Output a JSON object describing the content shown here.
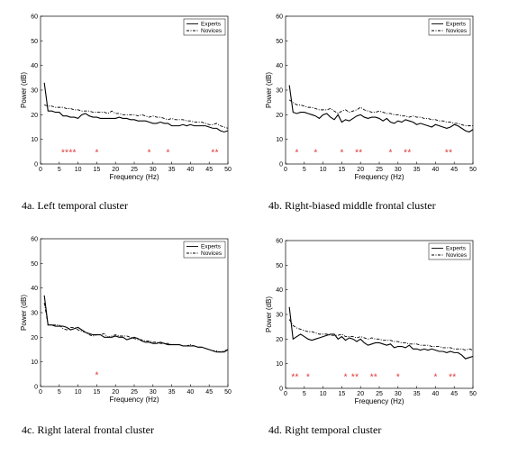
{
  "chart_data": [
    {
      "type": "line",
      "caption": "4a. Left temporal cluster",
      "xlabel": "Frequency (Hz)",
      "ylabel": "Power (dB)",
      "xlim": [
        0,
        50
      ],
      "ylim": [
        0,
        60
      ],
      "xticks": [
        0,
        5,
        10,
        15,
        20,
        25,
        30,
        35,
        40,
        45,
        50
      ],
      "yticks": [
        0,
        10,
        20,
        30,
        40,
        50,
        60
      ],
      "legend": "top-right",
      "series": [
        {
          "name": "Experts",
          "style": "solid",
          "x": [
            1,
            2,
            3,
            4,
            5,
            6,
            7,
            8,
            9,
            10,
            11,
            12,
            13,
            14,
            15,
            16,
            17,
            18,
            19,
            20,
            21,
            22,
            23,
            24,
            25,
            26,
            27,
            28,
            29,
            30,
            31,
            32,
            33,
            34,
            35,
            36,
            37,
            38,
            39,
            40,
            41,
            42,
            43,
            44,
            45,
            46,
            47,
            48,
            49,
            50
          ],
          "y": [
            33,
            21.5,
            21.5,
            21,
            21,
            19.5,
            19.5,
            19,
            19,
            18.5,
            20,
            20.5,
            19.5,
            19,
            19,
            18.5,
            18.5,
            18.5,
            18.5,
            18.5,
            19,
            18.5,
            18.5,
            18,
            18,
            17.5,
            17.5,
            17.5,
            17,
            16.5,
            16.5,
            17,
            16.5,
            16.5,
            15.5,
            15.5,
            15.5,
            16,
            15.5,
            16,
            15.5,
            15.5,
            15.5,
            15.5,
            15,
            14.5,
            14.5,
            13.5,
            13,
            13.5
          ]
        },
        {
          "name": "Novices",
          "style": "dashed",
          "x": [
            1,
            2,
            3,
            4,
            5,
            6,
            7,
            8,
            9,
            10,
            11,
            12,
            13,
            14,
            15,
            16,
            17,
            18,
            19,
            20,
            21,
            22,
            23,
            24,
            25,
            26,
            27,
            28,
            29,
            30,
            31,
            32,
            33,
            34,
            35,
            36,
            37,
            38,
            39,
            40,
            41,
            42,
            43,
            44,
            45,
            46,
            47,
            48,
            49,
            50
          ],
          "y": [
            24,
            23.5,
            23.5,
            23,
            23,
            23,
            22.5,
            22.5,
            22,
            22,
            21.5,
            21.5,
            21.5,
            21,
            21,
            21,
            21,
            20.5,
            21.5,
            20.5,
            20.5,
            20,
            20,
            20,
            20,
            19.5,
            20,
            19.5,
            19,
            19.5,
            19,
            19,
            18.5,
            18,
            18.5,
            18,
            18,
            18,
            17.5,
            17.5,
            17,
            17,
            17,
            16.5,
            16,
            16,
            16.5,
            15.5,
            15,
            14.5
          ]
        }
      ],
      "significance_marks": [
        {
          "x": 6,
          "y": 5
        },
        {
          "x": 7,
          "y": 5
        },
        {
          "x": 8,
          "y": 5
        },
        {
          "x": 9,
          "y": 5
        },
        {
          "x": 15,
          "y": 5
        },
        {
          "x": 29,
          "y": 5
        },
        {
          "x": 34,
          "y": 5
        },
        {
          "x": 46,
          "y": 5
        },
        {
          "x": 47,
          "y": 5
        }
      ]
    },
    {
      "type": "line",
      "caption": "4b. Right-biased middle frontal cluster",
      "xlabel": "Frequency (Hz)",
      "ylabel": "Power (dB)",
      "xlim": [
        0,
        50
      ],
      "ylim": [
        0,
        60
      ],
      "xticks": [
        0,
        5,
        10,
        15,
        20,
        25,
        30,
        35,
        40,
        45,
        50
      ],
      "yticks": [
        0,
        10,
        20,
        30,
        40,
        50,
        60
      ],
      "legend": "top-right",
      "series": [
        {
          "name": "Experts",
          "style": "solid",
          "x": [
            1,
            2,
            3,
            4,
            5,
            6,
            7,
            8,
            9,
            10,
            11,
            12,
            13,
            14,
            15,
            16,
            17,
            18,
            19,
            20,
            21,
            22,
            23,
            24,
            25,
            26,
            27,
            28,
            29,
            30,
            31,
            32,
            33,
            34,
            35,
            36,
            37,
            38,
            39,
            40,
            41,
            42,
            43,
            44,
            45,
            46,
            47,
            48,
            49,
            50
          ],
          "y": [
            32,
            21,
            20.5,
            21,
            21,
            20.5,
            20,
            19.5,
            18.5,
            20,
            20.5,
            19,
            18,
            20,
            17,
            18,
            17.5,
            18.5,
            19.5,
            20,
            19,
            18.5,
            19,
            19,
            18.5,
            17.5,
            18.5,
            17,
            16.5,
            17.5,
            17,
            18,
            17.5,
            17,
            16,
            16.5,
            16,
            15.5,
            15,
            16,
            15.5,
            15,
            14.5,
            15,
            16,
            15.5,
            14.5,
            13.5,
            13,
            14
          ]
        },
        {
          "name": "Novices",
          "style": "dashed",
          "x": [
            1,
            2,
            3,
            4,
            5,
            6,
            7,
            8,
            9,
            10,
            11,
            12,
            13,
            14,
            15,
            16,
            17,
            18,
            19,
            20,
            21,
            22,
            23,
            24,
            25,
            26,
            27,
            28,
            29,
            30,
            31,
            32,
            33,
            34,
            35,
            36,
            37,
            38,
            39,
            40,
            41,
            42,
            43,
            44,
            45,
            46,
            47,
            48,
            49,
            50
          ],
          "y": [
            26,
            25,
            24,
            24,
            23.5,
            23,
            23,
            22.5,
            22,
            22,
            22,
            22.5,
            21.5,
            20.5,
            21.5,
            22,
            21,
            21.5,
            22,
            23,
            22,
            21.5,
            21,
            21,
            21.5,
            21,
            20.5,
            20.5,
            20,
            20,
            19.5,
            19.5,
            19,
            19.5,
            19,
            19,
            18.5,
            18.5,
            18,
            18,
            17.5,
            17.5,
            17,
            17,
            16.5,
            16.5,
            16,
            15.5,
            15.5,
            15.5
          ]
        }
      ],
      "significance_marks": [
        {
          "x": 3,
          "y": 5
        },
        {
          "x": 8,
          "y": 5
        },
        {
          "x": 15,
          "y": 5
        },
        {
          "x": 19,
          "y": 5
        },
        {
          "x": 20,
          "y": 5
        },
        {
          "x": 28,
          "y": 5
        },
        {
          "x": 32,
          "y": 5
        },
        {
          "x": 33,
          "y": 5
        },
        {
          "x": 43,
          "y": 5
        },
        {
          "x": 44,
          "y": 5
        }
      ]
    },
    {
      "type": "line",
      "caption": "4c. Right lateral frontal cluster",
      "xlabel": "Frequency (Hz)",
      "ylabel": "Power (dB)",
      "xlim": [
        0,
        50
      ],
      "ylim": [
        0,
        60
      ],
      "xticks": [
        0,
        5,
        10,
        15,
        20,
        25,
        30,
        35,
        40,
        45,
        50
      ],
      "yticks": [
        0,
        10,
        20,
        30,
        40,
        50,
        60
      ],
      "legend": "top-right",
      "series": [
        {
          "name": "Experts",
          "style": "solid",
          "x": [
            1,
            2,
            3,
            4,
            5,
            6,
            7,
            8,
            9,
            10,
            11,
            12,
            13,
            14,
            15,
            16,
            17,
            18,
            19,
            20,
            21,
            22,
            23,
            24,
            25,
            26,
            27,
            28,
            29,
            30,
            31,
            32,
            33,
            34,
            35,
            36,
            37,
            38,
            39,
            40,
            41,
            42,
            43,
            44,
            45,
            46,
            47,
            48,
            49,
            50
          ],
          "y": [
            37,
            25,
            25,
            24.5,
            24.5,
            24.5,
            24,
            23,
            23.5,
            24,
            23,
            22,
            21.5,
            21,
            21,
            21,
            20,
            20,
            20,
            20.5,
            20,
            20,
            19,
            19.5,
            20,
            19.5,
            18.5,
            18,
            18,
            17.5,
            17.5,
            18,
            17.5,
            17,
            17,
            17,
            17,
            16.5,
            16.5,
            16.5,
            16.5,
            16,
            16,
            15.5,
            15,
            14.5,
            14,
            14,
            14,
            15
          ]
        },
        {
          "name": "Novices",
          "style": "dashed",
          "x": [
            1,
            2,
            3,
            4,
            5,
            6,
            7,
            8,
            9,
            10,
            11,
            12,
            13,
            14,
            15,
            16,
            17,
            18,
            19,
            20,
            21,
            22,
            23,
            24,
            25,
            26,
            27,
            28,
            29,
            30,
            31,
            32,
            33,
            34,
            35,
            36,
            37,
            38,
            39,
            40,
            41,
            42,
            43,
            44,
            45,
            46,
            47,
            48,
            49,
            50
          ],
          "y": [
            34,
            25,
            25,
            25,
            25,
            23.5,
            23,
            24,
            24,
            23,
            22.5,
            22,
            21,
            20.5,
            21,
            21,
            21.5,
            20,
            20.5,
            21,
            20.5,
            20.5,
            20.5,
            20,
            19.5,
            19,
            19,
            18.5,
            18.5,
            18,
            18,
            17.5,
            17.5,
            17.5,
            17,
            17,
            17,
            16.5,
            16.5,
            17,
            16.5,
            16,
            16,
            15.5,
            15,
            14.5,
            14.5,
            14,
            14.5,
            15
          ]
        }
      ],
      "significance_marks": [
        {
          "x": 15,
          "y": 5
        }
      ]
    },
    {
      "type": "line",
      "caption": "4d. Right temporal cluster",
      "xlabel": "Frequency (Hz)",
      "ylabel": "Power (dB)",
      "xlim": [
        0,
        50
      ],
      "ylim": [
        0,
        60
      ],
      "xticks": [
        0,
        5,
        10,
        15,
        20,
        25,
        30,
        35,
        40,
        45,
        50
      ],
      "yticks": [
        0,
        10,
        20,
        30,
        40,
        50,
        60
      ],
      "legend": "top-right",
      "series": [
        {
          "name": "Experts",
          "style": "solid",
          "x": [
            1,
            2,
            3,
            4,
            5,
            6,
            7,
            8,
            9,
            10,
            11,
            12,
            13,
            14,
            15,
            16,
            17,
            18,
            19,
            20,
            21,
            22,
            23,
            24,
            25,
            26,
            27,
            28,
            29,
            30,
            31,
            32,
            33,
            34,
            35,
            36,
            37,
            38,
            39,
            40,
            41,
            42,
            43,
            44,
            45,
            46,
            47,
            48,
            49,
            50
          ],
          "y": [
            33,
            20,
            21,
            22,
            21,
            20,
            19.5,
            20,
            20.5,
            21,
            21.5,
            22,
            22,
            20,
            21,
            19.5,
            20.5,
            20,
            19,
            20,
            18.5,
            17.5,
            18,
            18.5,
            18.5,
            18,
            17.5,
            18,
            16.5,
            17,
            17,
            16.5,
            17.5,
            16,
            16,
            15.5,
            16,
            15.5,
            16,
            15.5,
            15,
            15,
            14.5,
            15,
            14.5,
            14.5,
            13.5,
            12,
            12.5,
            13
          ]
        },
        {
          "name": "Novices",
          "style": "dashed",
          "x": [
            1,
            2,
            3,
            4,
            5,
            6,
            7,
            8,
            9,
            10,
            11,
            12,
            13,
            14,
            15,
            16,
            17,
            18,
            19,
            20,
            21,
            22,
            23,
            24,
            25,
            26,
            27,
            28,
            29,
            30,
            31,
            32,
            33,
            34,
            35,
            36,
            37,
            38,
            39,
            40,
            41,
            42,
            43,
            44,
            45,
            46,
            47,
            48,
            49,
            50
          ],
          "y": [
            28,
            25.5,
            24.5,
            24,
            23.5,
            23,
            23,
            22.5,
            22,
            22,
            22,
            21.5,
            21.5,
            21.5,
            22,
            21,
            21,
            21,
            20.5,
            21,
            20.5,
            20,
            20.5,
            20,
            20,
            19.5,
            19.5,
            19.5,
            19,
            19,
            18.5,
            18.5,
            18,
            18,
            18,
            17.5,
            17.5,
            17.5,
            17,
            17,
            17,
            16.5,
            16.5,
            16.5,
            16,
            16,
            16,
            15.5,
            16,
            15.5
          ]
        }
      ],
      "significance_marks": [
        {
          "x": 2,
          "y": 5
        },
        {
          "x": 3,
          "y": 5
        },
        {
          "x": 6,
          "y": 5
        },
        {
          "x": 16,
          "y": 5
        },
        {
          "x": 18,
          "y": 5
        },
        {
          "x": 19,
          "y": 5
        },
        {
          "x": 23,
          "y": 5
        },
        {
          "x": 24,
          "y": 5
        },
        {
          "x": 30,
          "y": 5
        },
        {
          "x": 40,
          "y": 5
        },
        {
          "x": 44,
          "y": 5
        },
        {
          "x": 45,
          "y": 5
        }
      ]
    }
  ]
}
